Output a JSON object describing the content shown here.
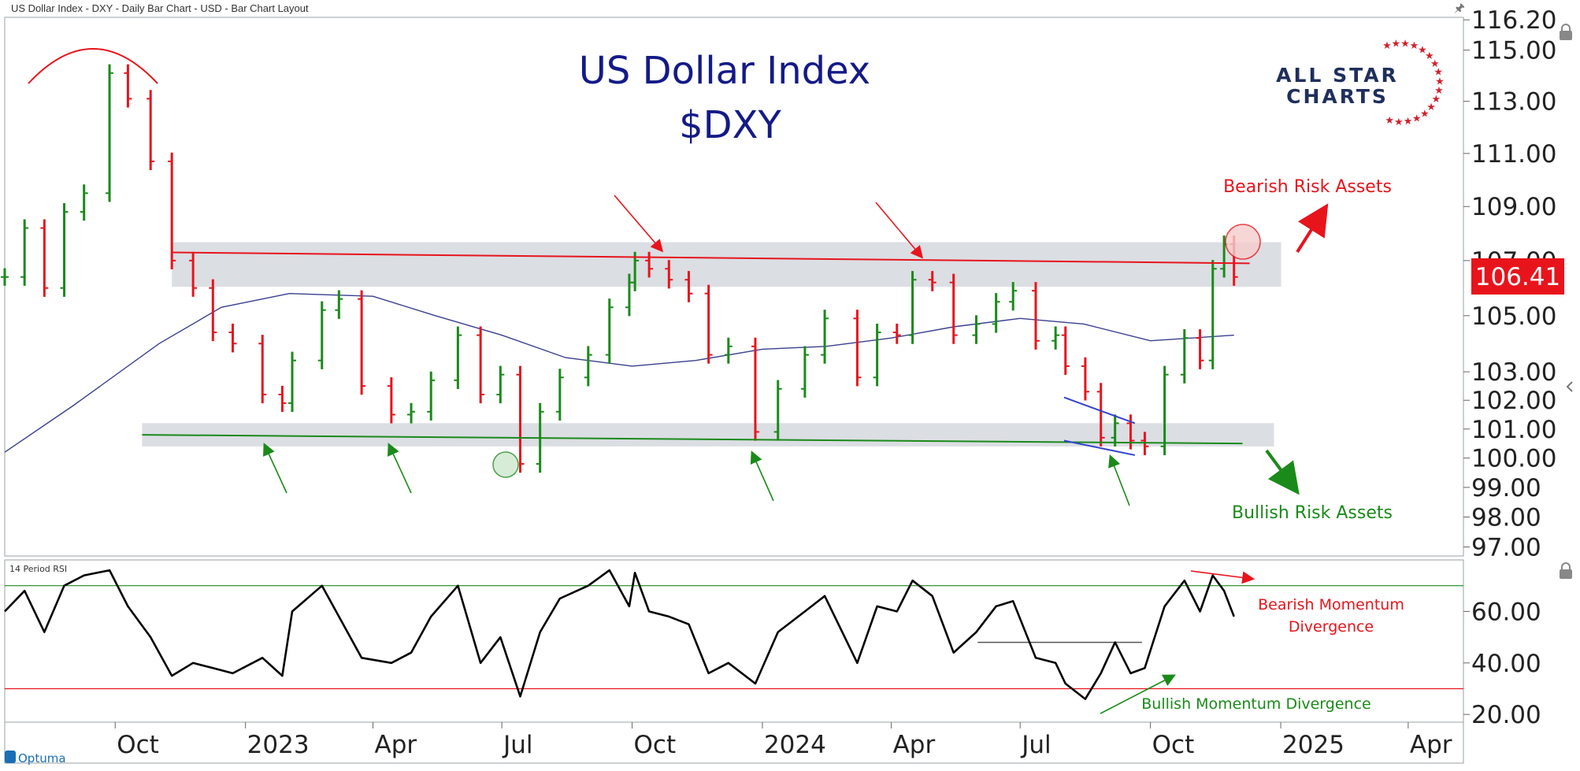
{
  "window": {
    "title": "US Dollar Index - DXY - Daily Bar Chart - USD - Bar Chart Layout"
  },
  "logo": {
    "line1": "ALL STAR",
    "line2": "CHARTS",
    "text_color": "#1f2f5c",
    "star_color": "#d0202e"
  },
  "branding": {
    "name": "Optuma",
    "color": "#1a6fb5"
  },
  "icons": [
    "pin-icon",
    "lock-icon",
    "chevron-left-icon",
    "optuma-logo-icon"
  ],
  "colors": {
    "up_bar": "#1a8a1a",
    "down_bar": "#e8141c",
    "moving_average": "#3a3f8f",
    "title": "#141a87",
    "resistance": "#e8141c",
    "support": "#1a8a1a",
    "zone": "#d5d8de",
    "rsi_line": "#000000",
    "annotation_red": "#e8141c",
    "annotation_green": "#1a8a1a",
    "wedge": "#3344cc"
  },
  "chart_data": [
    {
      "type": "bar",
      "title": "US Dollar Index",
      "subtitle": "$DXY",
      "current_value": "106.41",
      "x_tick_labels": [
        "Oct",
        "2023",
        "Apr",
        "Jul",
        "Oct",
        "2024",
        "Apr",
        "Jul",
        "Oct",
        "2025",
        "Apr"
      ],
      "y_tick_labels": [
        "97.00",
        "98.00",
        "99.00",
        "100.00",
        "101.00",
        "102.00",
        "103.00",
        "105.00",
        "107.00",
        "109.00",
        "111.00",
        "113.00",
        "115.00",
        "116.20"
      ],
      "ylim": [
        96.7,
        116.3
      ],
      "y_scale": "log",
      "series": [
        {
          "x": [
            "2022-07-15",
            "2022-07-29",
            "2022-08-12",
            "2022-08-26",
            "2022-09-09",
            "2022-09-27",
            "2022-10-10",
            "2022-10-26",
            "2022-11-10",
            "2022-11-25",
            "2022-12-09",
            "2022-12-23",
            "2023-01-13",
            "2023-01-27",
            "2023-02-03",
            "2023-02-24",
            "2023-03-08",
            "2023-03-24",
            "2023-04-14",
            "2023-04-28",
            "2023-05-12",
            "2023-05-31",
            "2023-06-16",
            "2023-06-30",
            "2023-07-14",
            "2023-07-28",
            "2023-08-11",
            "2023-08-31",
            "2023-09-15",
            "2023-09-29",
            "2023-10-03",
            "2023-10-13",
            "2023-10-27",
            "2023-11-10",
            "2023-11-24",
            "2023-12-08",
            "2023-12-27",
            "2024-01-12",
            "2024-01-31",
            "2024-02-14",
            "2024-03-08",
            "2024-03-22",
            "2024-04-05",
            "2024-04-16",
            "2024-04-30",
            "2024-05-15",
            "2024-05-31",
            "2024-06-14",
            "2024-06-26",
            "2024-07-12",
            "2024-07-26",
            "2024-08-02",
            "2024-08-16",
            "2024-08-27",
            "2024-09-06",
            "2024-09-17",
            "2024-09-27",
            "2024-10-11",
            "2024-10-25",
            "2024-11-05",
            "2024-11-14",
            "2024-11-22",
            "2024-11-29"
          ],
          "y": [
            106.4,
            108.2,
            106.0,
            108.8,
            109.5,
            114.1,
            113.1,
            110.7,
            107.0,
            106.0,
            104.4,
            104.0,
            102.2,
            101.9,
            103.4,
            105.2,
            105.6,
            102.5,
            101.5,
            101.6,
            102.7,
            104.3,
            102.2,
            102.9,
            99.8,
            101.6,
            102.8,
            103.6,
            105.3,
            106.2,
            107.0,
            106.7,
            106.3,
            105.8,
            103.6,
            103.9,
            100.9,
            102.4,
            103.6,
            104.9,
            102.8,
            104.4,
            104.3,
            106.3,
            106.2,
            104.3,
            104.7,
            105.5,
            105.9,
            104.1,
            104.3,
            103.2,
            102.3,
            100.7,
            101.2,
            100.6,
            100.4,
            102.9,
            104.2,
            103.4,
            106.7,
            107.6,
            106.4
          ]
        },
        {
          "name": "",
          "kind": "moving-average",
          "x": [
            "2022-07-15",
            "2022-09-01",
            "2022-11-01",
            "2022-12-15",
            "2023-02-01",
            "2023-04-01",
            "2023-05-15",
            "2023-07-01",
            "2023-08-15",
            "2023-10-01",
            "2023-11-15",
            "2024-01-01",
            "2024-02-15",
            "2024-04-01",
            "2024-05-15",
            "2024-07-01",
            "2024-08-15",
            "2024-10-01",
            "2024-11-29"
          ],
          "y": [
            100.2,
            101.8,
            104.0,
            105.3,
            105.8,
            105.7,
            105.0,
            104.3,
            103.5,
            103.2,
            103.4,
            103.8,
            103.9,
            104.2,
            104.6,
            104.9,
            104.7,
            104.1,
            104.3
          ]
        }
      ],
      "lines": [
        {
          "kind": "resistance",
          "x": [
            "2022-11-10",
            "2024-12-10"
          ],
          "y": [
            107.3,
            106.9
          ]
        },
        {
          "kind": "support",
          "x": [
            "2022-10-20",
            "2024-12-05"
          ],
          "y": [
            100.8,
            100.5
          ]
        },
        {
          "kind": "wedge-upper",
          "x": [
            "2024-08-01",
            "2024-09-20"
          ],
          "y": [
            102.1,
            101.2
          ]
        },
        {
          "kind": "wedge-lower",
          "x": [
            "2024-08-01",
            "2024-09-20"
          ],
          "y": [
            100.6,
            100.1
          ]
        }
      ],
      "annotations": [
        "Bearish Risk Assets",
        "Bullish Risk Assets"
      ]
    },
    {
      "type": "line",
      "title": "14 Period RSI",
      "x_tick_labels": [
        "Oct",
        "2023",
        "Apr",
        "Jul",
        "Oct",
        "2024",
        "Apr",
        "Jul",
        "Oct",
        "2025",
        "Apr"
      ],
      "y_tick_labels": [
        "20.00",
        "40.00",
        "60.00"
      ],
      "ylim": [
        17,
        80
      ],
      "reference_lines": [
        70,
        30
      ],
      "series": [
        {
          "x": [
            "2022-07-15",
            "2022-07-29",
            "2022-08-12",
            "2022-08-26",
            "2022-09-09",
            "2022-09-27",
            "2022-10-10",
            "2022-10-26",
            "2022-11-10",
            "2022-11-25",
            "2022-12-09",
            "2022-12-23",
            "2023-01-13",
            "2023-01-27",
            "2023-02-03",
            "2023-02-24",
            "2023-03-08",
            "2023-03-24",
            "2023-04-14",
            "2023-04-28",
            "2023-05-12",
            "2023-05-31",
            "2023-06-16",
            "2023-06-30",
            "2023-07-14",
            "2023-07-28",
            "2023-08-11",
            "2023-08-31",
            "2023-09-15",
            "2023-09-29",
            "2023-10-03",
            "2023-10-13",
            "2023-10-27",
            "2023-11-10",
            "2023-11-24",
            "2023-12-08",
            "2023-12-27",
            "2024-01-12",
            "2024-01-31",
            "2024-02-14",
            "2024-03-08",
            "2024-03-22",
            "2024-04-05",
            "2024-04-16",
            "2024-04-30",
            "2024-05-15",
            "2024-05-31",
            "2024-06-14",
            "2024-06-26",
            "2024-07-12",
            "2024-07-26",
            "2024-08-02",
            "2024-08-16",
            "2024-08-27",
            "2024-09-06",
            "2024-09-17",
            "2024-09-27",
            "2024-10-11",
            "2024-10-25",
            "2024-11-05",
            "2024-11-14",
            "2024-11-22",
            "2024-11-29"
          ],
          "y": [
            60,
            68,
            52,
            70,
            74,
            76,
            62,
            50,
            35,
            40,
            38,
            36,
            42,
            35,
            60,
            70,
            58,
            42,
            40,
            44,
            58,
            70,
            40,
            50,
            27,
            52,
            65,
            70,
            76,
            62,
            75,
            60,
            58,
            55,
            36,
            40,
            32,
            52,
            60,
            66,
            40,
            62,
            60,
            72,
            66,
            44,
            52,
            62,
            64,
            42,
            40,
            32,
            26,
            36,
            48,
            36,
            38,
            62,
            72,
            60,
            74,
            68,
            58
          ]
        }
      ],
      "lines": [
        {
          "kind": "horizontal",
          "x": [
            "2024-06-01",
            "2024-09-25"
          ],
          "y": [
            48,
            48
          ]
        }
      ],
      "annotations": [
        "Bearish Momentum",
        "Divergence",
        "Bullish Momentum Divergence"
      ]
    }
  ]
}
